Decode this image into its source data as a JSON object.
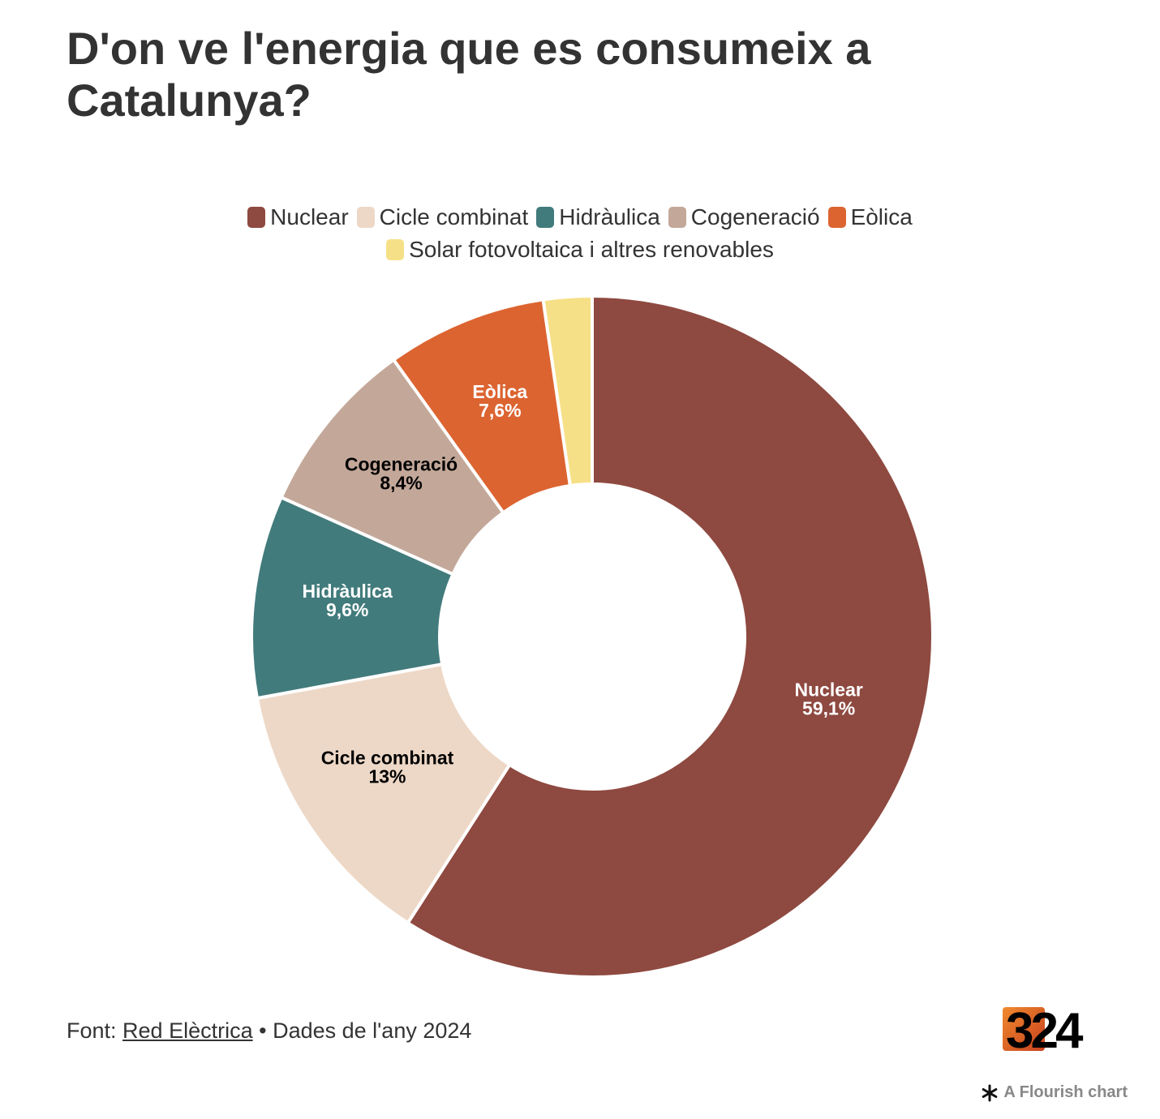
{
  "chart_data": {
    "type": "pie",
    "subtype": "donut",
    "title": "D'on ve l'energia que es consumeix a Catalunya?",
    "legend_position": "top",
    "categories": [
      "Nuclear",
      "Cicle combinat",
      "Hidràulica",
      "Cogeneració",
      "Eòlica",
      "Solar fotovoltaica i altres renovables"
    ],
    "values": [
      59.1,
      13,
      9.6,
      8.4,
      7.6,
      2.3
    ],
    "value_labels": [
      "59,1%",
      "13%",
      "9,6%",
      "8,4%",
      "7,6%",
      ""
    ],
    "colors": [
      "#8e4940",
      "#edd8c7",
      "#427b7c",
      "#c3a899",
      "#dc6431",
      "#f6e087"
    ],
    "label_colors": [
      "#ffffff",
      "#000000",
      "#ffffff",
      "#000000",
      "#ffffff",
      "#000000"
    ]
  },
  "footer": {
    "source_prefix": "Font: ",
    "source_link": "Red Elèctrica",
    "source_suffix": " • Dades de l'any 2024"
  },
  "logo": {
    "text": "324",
    "colors": [
      "#e2652a",
      "#000000"
    ]
  },
  "credit": {
    "text": "A Flourish chart",
    "icon": "flourish-asterisk-icon"
  }
}
